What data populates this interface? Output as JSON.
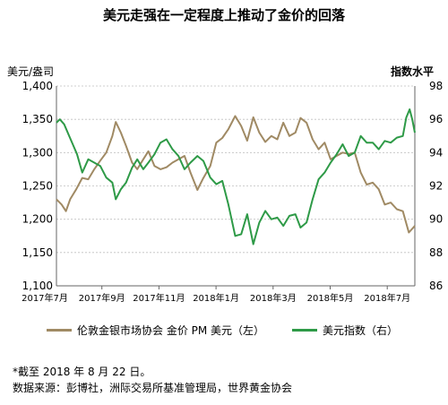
{
  "title": "美元走强在一定程度上推动了金价的回落",
  "colors": {
    "gold": "#a08a64",
    "usd": "#2e9a47",
    "grid": "#c0c0c0",
    "axis": "#666666"
  },
  "legend": [
    {
      "label": "伦敦金银市场协会 金价 PM 美元（左）",
      "color": "#a08a64"
    },
    {
      "label": "美元指数（右）",
      "color": "#2e9a47"
    }
  ],
  "footnote": {
    "line1": "*截至 2018 年 8 月 22 日。",
    "line2": "数据来源：彭博社，洲际交易所基准管理局，世界黄金协会"
  },
  "chart_data": {
    "type": "line",
    "x_ticks": [
      "2017年7月",
      "2017年9月",
      "2017年11月",
      "2018年1月",
      "2018年3月",
      "2018年5月",
      "2018年7月"
    ],
    "y_left": {
      "label": "美元/盎司",
      "range": [
        1100,
        1400
      ],
      "ticks": [
        "1,100",
        "1,150",
        "1,200",
        "1,250",
        "1,300",
        "1,350",
        "1,400"
      ]
    },
    "y_right": {
      "label": "指数水平",
      "range": [
        86,
        98
      ],
      "ticks": [
        "86",
        "88",
        "90",
        "92",
        "94",
        "96",
        "98"
      ]
    },
    "grid": "horizontal",
    "x_range": [
      "2017-07-01",
      "2018-08-22"
    ],
    "series": [
      {
        "name": "伦敦金银市场协会 金价 PM 美元（左）",
        "axis": "left",
        "points": [
          [
            "2017-07-01",
            1230
          ],
          [
            "2017-07-07",
            1222
          ],
          [
            "2017-07-12",
            1212
          ],
          [
            "2017-07-17",
            1230
          ],
          [
            "2017-07-24",
            1245
          ],
          [
            "2017-07-31",
            1262
          ],
          [
            "2017-08-07",
            1260
          ],
          [
            "2017-08-14",
            1275
          ],
          [
            "2017-08-21",
            1288
          ],
          [
            "2017-08-28",
            1300
          ],
          [
            "2017-09-04",
            1325
          ],
          [
            "2017-09-08",
            1346
          ],
          [
            "2017-09-14",
            1330
          ],
          [
            "2017-09-20",
            1310
          ],
          [
            "2017-09-27",
            1285
          ],
          [
            "2017-10-03",
            1275
          ],
          [
            "2017-10-10",
            1290
          ],
          [
            "2017-10-16",
            1302
          ],
          [
            "2017-10-23",
            1280
          ],
          [
            "2017-10-30",
            1275
          ],
          [
            "2017-11-06",
            1278
          ],
          [
            "2017-11-13",
            1285
          ],
          [
            "2017-11-20",
            1290
          ],
          [
            "2017-11-27",
            1295
          ],
          [
            "2017-12-04",
            1270
          ],
          [
            "2017-12-12",
            1244
          ],
          [
            "2017-12-19",
            1262
          ],
          [
            "2017-12-27",
            1280
          ],
          [
            "2018-01-03",
            1315
          ],
          [
            "2018-01-10",
            1322
          ],
          [
            "2018-01-17",
            1335
          ],
          [
            "2018-01-25",
            1355
          ],
          [
            "2018-02-01",
            1340
          ],
          [
            "2018-02-08",
            1318
          ],
          [
            "2018-02-15",
            1353
          ],
          [
            "2018-02-22",
            1330
          ],
          [
            "2018-03-01",
            1316
          ],
          [
            "2018-03-08",
            1325
          ],
          [
            "2018-03-15",
            1320
          ],
          [
            "2018-03-22",
            1345
          ],
          [
            "2018-03-29",
            1325
          ],
          [
            "2018-04-05",
            1330
          ],
          [
            "2018-04-11",
            1352
          ],
          [
            "2018-04-18",
            1345
          ],
          [
            "2018-04-25",
            1320
          ],
          [
            "2018-05-02",
            1305
          ],
          [
            "2018-05-09",
            1315
          ],
          [
            "2018-05-16",
            1290
          ],
          [
            "2018-05-23",
            1295
          ],
          [
            "2018-05-30",
            1300
          ],
          [
            "2018-06-06",
            1298
          ],
          [
            "2018-06-13",
            1300
          ],
          [
            "2018-06-20",
            1270
          ],
          [
            "2018-06-27",
            1252
          ],
          [
            "2018-07-04",
            1255
          ],
          [
            "2018-07-11",
            1245
          ],
          [
            "2018-07-18",
            1222
          ],
          [
            "2018-07-25",
            1225
          ],
          [
            "2018-08-01",
            1215
          ],
          [
            "2018-08-08",
            1212
          ],
          [
            "2018-08-15",
            1180
          ],
          [
            "2018-08-22",
            1190
          ]
        ]
      },
      {
        "name": "美元指数（右）",
        "axis": "right",
        "points": [
          [
            "2017-07-01",
            95.8
          ],
          [
            "2017-07-05",
            96.0
          ],
          [
            "2017-07-10",
            95.7
          ],
          [
            "2017-07-15",
            95.1
          ],
          [
            "2017-07-20",
            94.5
          ],
          [
            "2017-07-25",
            93.9
          ],
          [
            "2017-07-31",
            92.8
          ],
          [
            "2017-08-07",
            93.6
          ],
          [
            "2017-08-14",
            93.4
          ],
          [
            "2017-08-21",
            93.2
          ],
          [
            "2017-08-28",
            92.5
          ],
          [
            "2017-09-04",
            92.2
          ],
          [
            "2017-09-08",
            91.2
          ],
          [
            "2017-09-14",
            91.8
          ],
          [
            "2017-09-20",
            92.2
          ],
          [
            "2017-09-27",
            93.1
          ],
          [
            "2017-10-03",
            93.6
          ],
          [
            "2017-10-10",
            93.0
          ],
          [
            "2017-10-16",
            93.4
          ],
          [
            "2017-10-23",
            93.9
          ],
          [
            "2017-10-30",
            94.6
          ],
          [
            "2017-11-06",
            94.8
          ],
          [
            "2017-11-13",
            94.2
          ],
          [
            "2017-11-20",
            93.8
          ],
          [
            "2017-11-27",
            93.0
          ],
          [
            "2017-12-04",
            93.4
          ],
          [
            "2017-12-12",
            93.8
          ],
          [
            "2017-12-19",
            93.5
          ],
          [
            "2017-12-27",
            92.5
          ],
          [
            "2018-01-03",
            92.1
          ],
          [
            "2018-01-10",
            92.3
          ],
          [
            "2018-01-17",
            90.9
          ],
          [
            "2018-01-25",
            89.0
          ],
          [
            "2018-02-01",
            89.1
          ],
          [
            "2018-02-08",
            90.3
          ],
          [
            "2018-02-15",
            88.5
          ],
          [
            "2018-02-22",
            89.8
          ],
          [
            "2018-03-01",
            90.5
          ],
          [
            "2018-03-08",
            90.0
          ],
          [
            "2018-03-15",
            90.1
          ],
          [
            "2018-03-22",
            89.6
          ],
          [
            "2018-03-29",
            90.2
          ],
          [
            "2018-04-05",
            90.3
          ],
          [
            "2018-04-11",
            89.5
          ],
          [
            "2018-04-18",
            89.8
          ],
          [
            "2018-04-25",
            91.2
          ],
          [
            "2018-05-02",
            92.4
          ],
          [
            "2018-05-09",
            92.8
          ],
          [
            "2018-05-16",
            93.4
          ],
          [
            "2018-05-23",
            93.9
          ],
          [
            "2018-05-30",
            94.5
          ],
          [
            "2018-06-06",
            93.8
          ],
          [
            "2018-06-13",
            94.0
          ],
          [
            "2018-06-20",
            95.0
          ],
          [
            "2018-06-27",
            94.6
          ],
          [
            "2018-07-04",
            94.6
          ],
          [
            "2018-07-11",
            94.2
          ],
          [
            "2018-07-18",
            94.7
          ],
          [
            "2018-07-25",
            94.6
          ],
          [
            "2018-08-01",
            94.9
          ],
          [
            "2018-08-08",
            95.0
          ],
          [
            "2018-08-12",
            96.1
          ],
          [
            "2018-08-16",
            96.6
          ],
          [
            "2018-08-19",
            96.0
          ],
          [
            "2018-08-22",
            95.2
          ]
        ]
      }
    ]
  }
}
